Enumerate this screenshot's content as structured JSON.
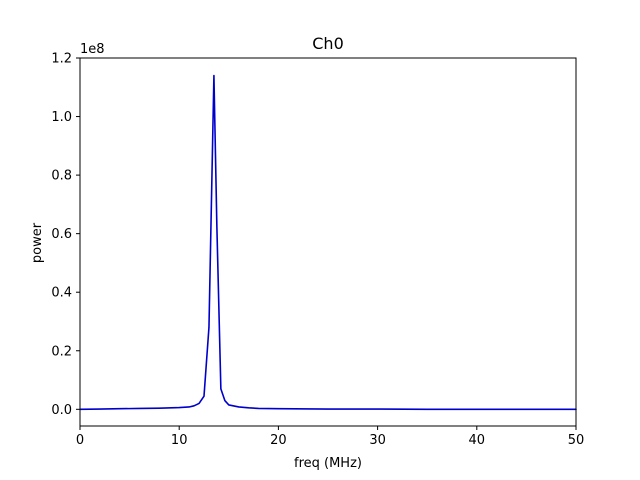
{
  "chart_data": {
    "type": "line",
    "title": "Ch0",
    "xlabel": "freq (MHz)",
    "ylabel": "power",
    "y_offset_label": "1e8",
    "xlim": [
      0,
      50
    ],
    "ylim": [
      -0.057,
      1.2
    ],
    "x_ticks": [
      0,
      10,
      20,
      30,
      40,
      50
    ],
    "x_tick_labels": [
      "0",
      "10",
      "20",
      "30",
      "40",
      "50"
    ],
    "y_ticks": [
      0.0,
      0.2,
      0.4,
      0.6,
      0.8,
      1.0,
      1.2
    ],
    "y_tick_labels": [
      "0.0",
      "0.2",
      "0.4",
      "0.6",
      "0.8",
      "1.0",
      "1.2"
    ],
    "grid": false,
    "series": [
      {
        "color": "#0000cc",
        "x": [
          0,
          2,
          4,
          6,
          8,
          10,
          11,
          11.5,
          12,
          12.5,
          13,
          13.5,
          13.8,
          14.2,
          14.6,
          15,
          16,
          17,
          18,
          20,
          25,
          30,
          35,
          40,
          45,
          50
        ],
        "y": [
          0.0,
          0.001,
          0.002,
          0.003,
          0.004,
          0.006,
          0.008,
          0.012,
          0.02,
          0.045,
          0.28,
          1.14,
          0.62,
          0.07,
          0.03,
          0.015,
          0.008,
          0.005,
          0.003,
          0.002,
          0.001,
          0.001,
          0.0,
          0.0,
          0.0,
          0.0
        ]
      }
    ]
  }
}
